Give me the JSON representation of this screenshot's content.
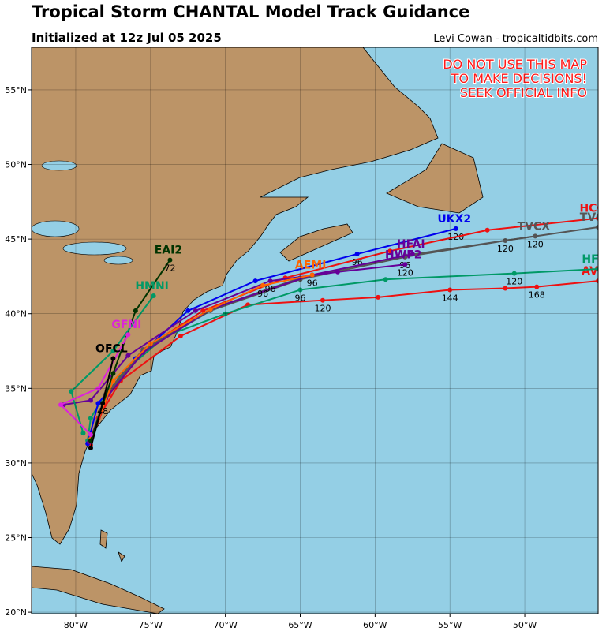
{
  "chart_data": {
    "type": "track-map",
    "title": "Tropical Storm CHANTAL Model Track Guidance",
    "subtitle": "Initialized at 12z Jul 05 2025",
    "credit": "Levi Cowan - tropicaltidbits.com",
    "warning": [
      "DO NOT USE THIS MAP",
      "TO MAKE DECISIONS!",
      "SEEK OFFICIAL INFO"
    ],
    "xlim": [
      -82.95,
      -45.1
    ],
    "ylim": [
      19.9,
      57.85
    ],
    "xticks": [
      {
        "value": -80,
        "label": "80°W"
      },
      {
        "value": -75,
        "label": "75°W"
      },
      {
        "value": -70,
        "label": "70°W"
      },
      {
        "value": -65,
        "label": "65°W"
      },
      {
        "value": -60,
        "label": "60°W"
      },
      {
        "value": -55,
        "label": "55°W"
      },
      {
        "value": -50,
        "label": "50°W"
      }
    ],
    "yticks": [
      {
        "value": 20,
        "label": "20°N"
      },
      {
        "value": 25,
        "label": "25°N"
      },
      {
        "value": 30,
        "label": "30°N"
      },
      {
        "value": 35,
        "label": "35°N"
      },
      {
        "value": 40,
        "label": "40°N"
      },
      {
        "value": 45,
        "label": "45°N"
      },
      {
        "value": 50,
        "label": "50°N"
      },
      {
        "value": 55,
        "label": "55°N"
      }
    ],
    "grid": true,
    "series": [
      {
        "name": "AVNI",
        "color": "#ee1111",
        "x": [
          -79,
          -78.5,
          -77,
          -73,
          -68.5,
          -63.5,
          -59.8,
          -55,
          -51.3,
          -49.2,
          -45.1
        ],
        "values": [
          31.2,
          33,
          35.5,
          38.5,
          40.6,
          40.9,
          41.1,
          41.6,
          41.7,
          41.8,
          42.2
        ],
        "hour_labels": [
          null,
          null,
          null,
          null,
          null,
          "120",
          null,
          "144",
          null,
          "168",
          null
        ]
      },
      {
        "name": "HFBI",
        "color": "#009966",
        "x": [
          -79.2,
          -79,
          -77.5,
          -74,
          -70,
          -65,
          -59.3,
          -50.7,
          -45.1
        ],
        "values": [
          31.5,
          33,
          35.5,
          38.5,
          40,
          41.6,
          42.3,
          42.7,
          43.0
        ],
        "hour_labels": [
          null,
          null,
          null,
          null,
          null,
          "96",
          null,
          "120",
          null
        ]
      },
      {
        "name": "UKX2",
        "color": "#0000ee",
        "x": [
          -79.2,
          -78.5,
          -76,
          -72.5,
          -68,
          -61.2,
          -54.6
        ],
        "values": [
          31.3,
          34,
          37,
          40.2,
          42.2,
          44,
          45.7
        ],
        "hour_labels": [
          null,
          null,
          null,
          null,
          null,
          "96",
          "120"
        ]
      },
      {
        "name": "HCCA",
        "color": "#ee1111",
        "x": [
          -79,
          -77.8,
          -75.5,
          -71.5,
          -66,
          -59,
          -52.5,
          -45.1
        ],
        "values": [
          31.4,
          34.6,
          37.6,
          40.2,
          42.4,
          44.2,
          45.6,
          46.4
        ],
        "hour_labels": [
          null,
          null,
          null,
          null,
          null,
          null,
          null,
          null
        ]
      },
      {
        "name": "TVCN",
        "color": "#555555",
        "x": [
          -79,
          -78,
          -75.5,
          -71,
          -65,
          -58,
          -51.3,
          -45.1
        ],
        "values": [
          31.5,
          34.5,
          37.5,
          40.2,
          42.3,
          43.8,
          44.9,
          45.8
        ],
        "hour_labels": [
          null,
          null,
          null,
          null,
          null,
          "96",
          "120",
          null
        ]
      },
      {
        "name": "TVCX",
        "color": "#555555",
        "x": [
          -79,
          -78,
          -75.5,
          -71,
          -65,
          -58,
          -49.3
        ],
        "values": [
          31.6,
          34.6,
          37.6,
          40.3,
          42.4,
          43.9,
          45.2
        ],
        "hour_labels": [
          null,
          null,
          null,
          null,
          null,
          null,
          "120"
        ]
      },
      {
        "name": "HFAI",
        "color": "#660099",
        "x": [
          -79.1,
          -78,
          -75.5,
          -71,
          -64.2,
          -57.5
        ],
        "values": [
          31.4,
          34.3,
          37.4,
          40.3,
          42.6,
          44.0
        ],
        "hour_labels": [
          null,
          null,
          null,
          null,
          "96",
          null
        ]
      },
      {
        "name": "HWF2",
        "color": "#660099",
        "x": [
          -80.8,
          -79,
          -76.5,
          -72,
          -67,
          -62.5,
          -58
        ],
        "values": [
          33.9,
          34.2,
          37.2,
          40.2,
          42.2,
          42.8,
          43.3
        ],
        "hour_labels": [
          null,
          null,
          null,
          null,
          "96",
          null,
          "120"
        ]
      },
      {
        "name": "AEMI",
        "color": "#ff6600",
        "x": [
          -79,
          -77.5,
          -75,
          -71,
          -67.5,
          -64.2
        ],
        "values": [
          31.6,
          35.5,
          38,
          40.3,
          41.9,
          42.6
        ],
        "hour_labels": [
          null,
          null,
          null,
          null,
          "96",
          null
        ]
      },
      {
        "name": "EAI2",
        "color": "#003300",
        "x": [
          -79,
          -77.5,
          -76,
          -73.7
        ],
        "values": [
          31.5,
          36,
          40.2,
          43.6
        ],
        "hour_labels": [
          null,
          null,
          null,
          "72"
        ]
      },
      {
        "name": "HMNI",
        "color": "#009966",
        "x": [
          -79.5,
          -80.3,
          -77.5,
          -74.8
        ],
        "values": [
          32,
          34.8,
          37.5,
          41.2
        ],
        "hour_labels": [
          null,
          null,
          null,
          null
        ]
      },
      {
        "name": "GFNI",
        "color": "#dd22dd",
        "x": [
          -79,
          -81,
          -78.5,
          -76.5
        ],
        "values": [
          31.9,
          33.9,
          35,
          38.6
        ],
        "hour_labels": [
          null,
          null,
          null,
          null
        ]
      },
      {
        "name": "OFCL",
        "color": "#000000",
        "x": [
          -79,
          -78.2,
          -77.5
        ],
        "values": [
          31.0,
          34.0,
          37.0
        ],
        "hour_labels": [
          null,
          "48",
          null
        ]
      }
    ]
  }
}
